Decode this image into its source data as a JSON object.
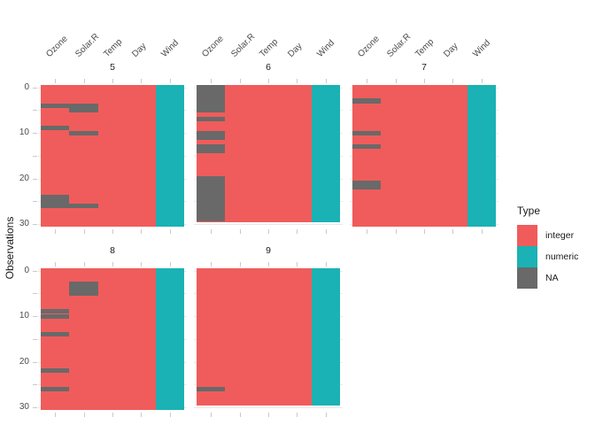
{
  "y_axis": {
    "title": "Observations",
    "tick_labels": [
      "0",
      "10",
      "20",
      "30"
    ]
  },
  "legend": {
    "title": "Type",
    "items": [
      {
        "label": "integer",
        "color": "#F05C5B"
      },
      {
        "label": "numeric",
        "color": "#1AB2B4"
      },
      {
        "label": "NA",
        "color": "#696969"
      }
    ]
  },
  "chart_data": {
    "type": "heatmap",
    "title": "",
    "ylabel": "Observations",
    "x_categories": [
      "Ozone",
      "Solar.R",
      "Temp",
      "Day",
      "Wind"
    ],
    "column_types": {
      "Ozone": "integer",
      "Solar.R": "integer",
      "Temp": "integer",
      "Day": "integer",
      "Wind": "numeric"
    },
    "colors": {
      "integer": "#F05C5B",
      "numeric": "#1AB2B4",
      "NA": "#696969"
    },
    "y_ticks": [
      0,
      10,
      20,
      30
    ],
    "y_minor_ticks": [
      5,
      15,
      25
    ],
    "ylim": [
      0,
      31
    ],
    "grid": true,
    "legend_position": "right",
    "legend_title": "Type",
    "facets": [
      {
        "label": "5",
        "n_obs": 31,
        "na_rows": {
          "Ozone": [
            5,
            10,
            25,
            26,
            27
          ],
          "Solar.R": [
            5,
            6,
            11,
            27
          ]
        }
      },
      {
        "label": "6",
        "n_obs": 30,
        "na_rows": {
          "Ozone": [
            1,
            2,
            3,
            4,
            5,
            6,
            8,
            11,
            12,
            14,
            15,
            21,
            22,
            23,
            24,
            25,
            26,
            27,
            28,
            29,
            30
          ]
        }
      },
      {
        "label": "7",
        "n_obs": 31,
        "na_rows": {
          "Ozone": [
            4,
            11,
            14,
            22,
            23
          ]
        }
      },
      {
        "label": "8",
        "n_obs": 31,
        "na_rows": {
          "Ozone": [
            10,
            11,
            15,
            23,
            27
          ],
          "Solar.R": [
            4,
            5,
            6
          ]
        }
      },
      {
        "label": "9",
        "n_obs": 30,
        "na_rows": {
          "Ozone": [
            27
          ]
        }
      }
    ]
  }
}
